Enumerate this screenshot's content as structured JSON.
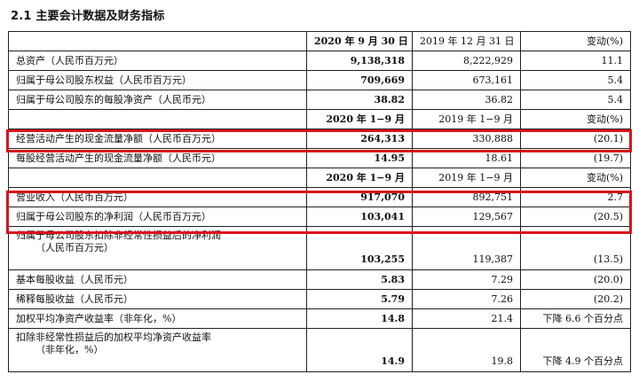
{
  "section": {
    "title": "2.1 主要会计数据及财务指标"
  },
  "colors": {
    "highlight": "#d6151c",
    "border": "#222222",
    "text": "#111111"
  },
  "table": {
    "header1": {
      "label": "",
      "c1": "2020 年 9 月 30 日",
      "c2": "2019 年 12 月 31 日",
      "c3": "变动(%)"
    },
    "row_total_assets": {
      "label": "总资产（人民币百万元）",
      "c1": "9,138,318",
      "c2": "8,222,929",
      "c3": "11.1"
    },
    "row_equity": {
      "label": "归属于母公司股东权益（人民币百万元）",
      "c1": "709,669",
      "c2": "673,161",
      "c3": "5.4"
    },
    "row_nav_per_share": {
      "label": "归属于母公司股东的每股净资产（人民币元）",
      "c1": "38.82",
      "c2": "36.82",
      "c3": "5.4"
    },
    "header2": {
      "label": "",
      "c1": "2020 年 1−9 月",
      "c2": "2019 年 1−9 月",
      "c3": "变动(%)"
    },
    "row_op_cashflow": {
      "label": "经营活动产生的现金流量净额（人民币百万元）",
      "c1": "264,313",
      "c2": "330,888",
      "c3": "(20.1)"
    },
    "row_op_cashflow_ps": {
      "label": "每股经营活动产生的现金流量净额（人民币元）",
      "c1": "14.95",
      "c2": "18.61",
      "c3": "(19.7)"
    },
    "header3": {
      "label": "",
      "c1": "2020 年 1−9 月",
      "c2": "2019 年 1−9 月",
      "c3": "变动(%)"
    },
    "row_revenue": {
      "label": "营业收入（人民币百万元）",
      "c1": "917,070",
      "c2": "892,751",
      "c3": "2.7"
    },
    "row_net_profit": {
      "label": "归属于母公司股东的净利润（人民币百万元）",
      "c1": "103,041",
      "c2": "129,567",
      "c3": "(20.5)"
    },
    "row_net_profit_excl": {
      "label_line1": "归属于母公司股东扣除非经常性损益后的净利润",
      "label_line2": "（人民币百万元）",
      "c1": "103,255",
      "c2": "119,387",
      "c3": "(13.5)"
    },
    "row_basic_eps": {
      "label": "基本每股收益（人民币元）",
      "c1": "5.83",
      "c2": "7.29",
      "c3": "(20.0)"
    },
    "row_diluted_eps": {
      "label": "稀释每股收益（人民币元）",
      "c1": "5.79",
      "c2": "7.26",
      "c3": "(20.2)"
    },
    "row_roe": {
      "label": "加权平均净资产收益率（非年化，%）",
      "c1": "14.8",
      "c2": "21.4",
      "c3": "下降 6.6 个百分点"
    },
    "row_roe_excl": {
      "label_line1": "扣除非经常性损益后的加权平均净资产收益率",
      "label_line2": "（非年化，%）",
      "c1": "14.9",
      "c2": "19.8",
      "c3": "下降 4.9 个百分点"
    }
  }
}
